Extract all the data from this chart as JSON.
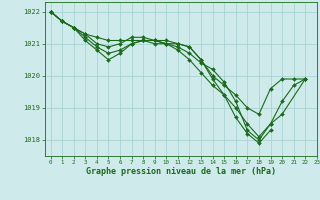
{
  "title": "Graphe pression niveau de la mer (hPa)",
  "bg_color": "#ceeaea",
  "grid_color": "#aad4d4",
  "line_color": "#1a6b1a",
  "marker_color": "#1a6b1a",
  "xlim": [
    -0.5,
    23
  ],
  "ylim": [
    1017.5,
    1022.3
  ],
  "yticks": [
    1018,
    1019,
    1020,
    1021,
    1022
  ],
  "xticks": [
    0,
    1,
    2,
    3,
    4,
    5,
    6,
    7,
    8,
    9,
    10,
    11,
    12,
    13,
    14,
    15,
    16,
    17,
    18,
    19,
    20,
    21,
    22,
    23
  ],
  "series": [
    {
      "x": [
        0,
        1,
        2,
        3,
        4,
        5,
        6,
        7,
        8,
        9,
        10,
        11,
        12,
        13,
        14,
        15,
        16,
        17,
        18,
        19,
        20,
        21,
        22
      ],
      "y": [
        1022.0,
        1021.7,
        1021.5,
        1021.3,
        1021.2,
        1021.1,
        1021.1,
        1021.1,
        1021.1,
        1021.0,
        1021.0,
        1021.0,
        1020.9,
        1020.5,
        1020.0,
        1019.7,
        1019.4,
        1019.0,
        1018.8,
        1019.6,
        1019.9,
        1019.9,
        1019.9
      ]
    },
    {
      "x": [
        0,
        1,
        2,
        3,
        4,
        5,
        6,
        7,
        8,
        9,
        10,
        11,
        12,
        13,
        14,
        15,
        16,
        17,
        18,
        19,
        20,
        21,
        22
      ],
      "y": [
        1022.0,
        1021.7,
        1021.5,
        1021.3,
        1021.0,
        1020.9,
        1021.0,
        1021.2,
        1021.2,
        1021.1,
        1021.0,
        1020.8,
        1020.5,
        1020.1,
        1019.7,
        1019.4,
        1019.0,
        1018.5,
        1018.1,
        1018.5,
        1019.2,
        1019.7,
        1019.9
      ]
    },
    {
      "x": [
        0,
        1,
        2,
        3,
        4,
        5,
        6,
        7,
        8,
        9,
        10,
        11,
        12,
        13,
        14,
        15,
        16,
        17,
        18,
        19
      ],
      "y": [
        1022.0,
        1021.7,
        1021.5,
        1021.1,
        1020.8,
        1020.5,
        1020.7,
        1021.0,
        1021.1,
        1021.1,
        1021.1,
        1021.0,
        1020.9,
        1020.5,
        1019.9,
        1019.4,
        1018.7,
        1018.2,
        1017.9,
        1018.3
      ]
    },
    {
      "x": [
        0,
        1,
        2,
        3,
        4,
        5,
        6,
        7,
        8,
        9,
        10,
        11,
        12,
        13,
        14,
        15,
        16,
        17,
        18,
        19,
        20,
        22
      ],
      "y": [
        1022.0,
        1021.7,
        1021.5,
        1021.2,
        1020.9,
        1020.7,
        1020.8,
        1021.0,
        1021.1,
        1021.1,
        1021.0,
        1020.9,
        1020.7,
        1020.4,
        1020.2,
        1019.8,
        1019.2,
        1018.3,
        1018.0,
        1018.5,
        1018.8,
        1019.9
      ]
    }
  ]
}
